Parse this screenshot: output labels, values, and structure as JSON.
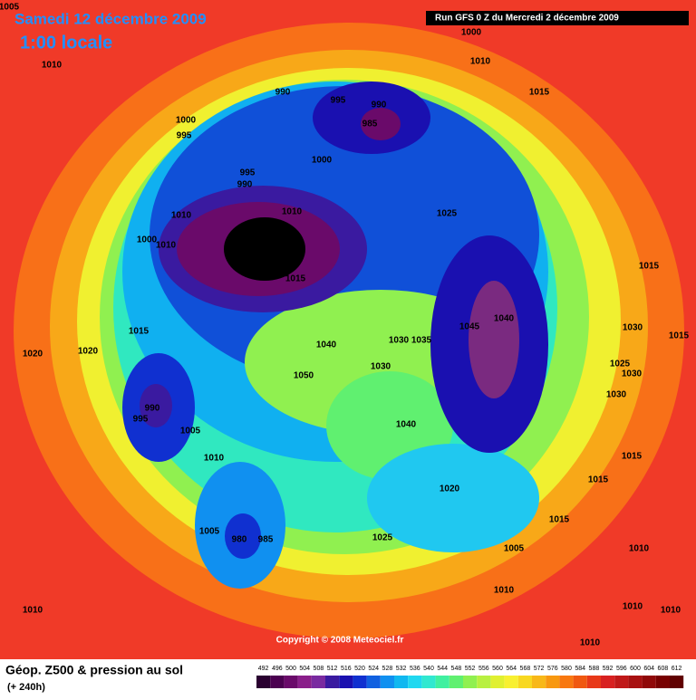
{
  "header": {
    "date": "Samedi 12 décembre 2009",
    "time": "1:00 locale",
    "run": "Run GFS 0 Z du Mercredi 2 décembre 2009"
  },
  "copyright": "Copyright © 2008 Meteociel.fr",
  "footer": {
    "title": "Géop. Z500 & pression au sol",
    "lead": "(+ 240h)"
  },
  "pressure_labels": [
    1005,
    1000,
    1010,
    1010,
    1015,
    990,
    995,
    990,
    985,
    1000,
    995,
    1000,
    995,
    990,
    1010,
    1010,
    1025,
    1000,
    1010,
    1015,
    1015,
    1040,
    1045,
    1030,
    1015,
    1015,
    1030,
    1035,
    1040,
    1020,
    1020,
    1025,
    1030,
    1030,
    1050,
    1030,
    990,
    995,
    1040,
    1005,
    1010,
    1015,
    1015,
    1020,
    1015,
    1005,
    980,
    985,
    1025,
    1005,
    1010,
    1010,
    1010,
    1010,
    1010,
    1010
  ],
  "legend": {
    "ticks": [
      492,
      496,
      500,
      504,
      508,
      512,
      516,
      520,
      524,
      528,
      532,
      536,
      540,
      544,
      548,
      552,
      556,
      560,
      564,
      568,
      572,
      576,
      580,
      584,
      588,
      592,
      596,
      600,
      604,
      608,
      612
    ],
    "colors": [
      "#2a0030",
      "#4b0050",
      "#6a0a6a",
      "#8a1e8a",
      "#7a2aa0",
      "#3a1aa0",
      "#1a10b0",
      "#1030d0",
      "#1060e0",
      "#1090f0",
      "#10b8f0",
      "#20d8f0",
      "#30e8d0",
      "#40f0a0",
      "#60f070",
      "#90f050",
      "#b8f040",
      "#e0f030",
      "#f8f030",
      "#f8d820",
      "#f8b818",
      "#f89810",
      "#f87810",
      "#f05810",
      "#e83818",
      "#d82020",
      "#c01818",
      "#a81010",
      "#900808",
      "#780000",
      "#600000"
    ]
  }
}
